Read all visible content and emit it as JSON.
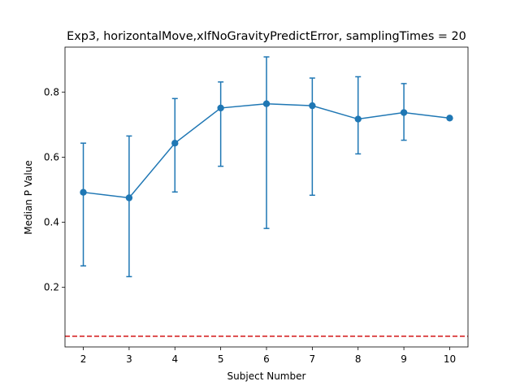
{
  "chart_data": {
    "type": "line",
    "title": "Exp3, horizontalMove,xIfNoGravityPredictError, samplingTimes = 20",
    "xlabel": "Subject Number",
    "ylabel": "Median P Value",
    "x": [
      2,
      3,
      4,
      5,
      6,
      7,
      8,
      9,
      10
    ],
    "xticks": [
      "2",
      "3",
      "4",
      "5",
      "6",
      "7",
      "8",
      "9",
      "10"
    ],
    "yticks": [
      "0.2",
      "0.4",
      "0.6",
      "0.8"
    ],
    "xlim": [
      1.6,
      10.4
    ],
    "ylim": [
      0.017,
      0.938
    ],
    "series": [
      {
        "values": [
          0.492,
          0.475,
          0.643,
          0.751,
          0.764,
          0.758,
          0.717,
          0.737,
          0.72
        ],
        "err_low": [
          0.266,
          0.233,
          0.493,
          0.572,
          0.381,
          0.483,
          0.61,
          0.652,
          0.72
        ],
        "err_high": [
          0.643,
          0.665,
          0.78,
          0.831,
          0.908,
          0.843,
          0.847,
          0.826,
          0.72
        ],
        "color": "#1f77b4"
      }
    ],
    "reference_line": {
      "y": 0.05,
      "color": "#d62728",
      "style": "dashed"
    },
    "grid": false,
    "legend": "none"
  }
}
